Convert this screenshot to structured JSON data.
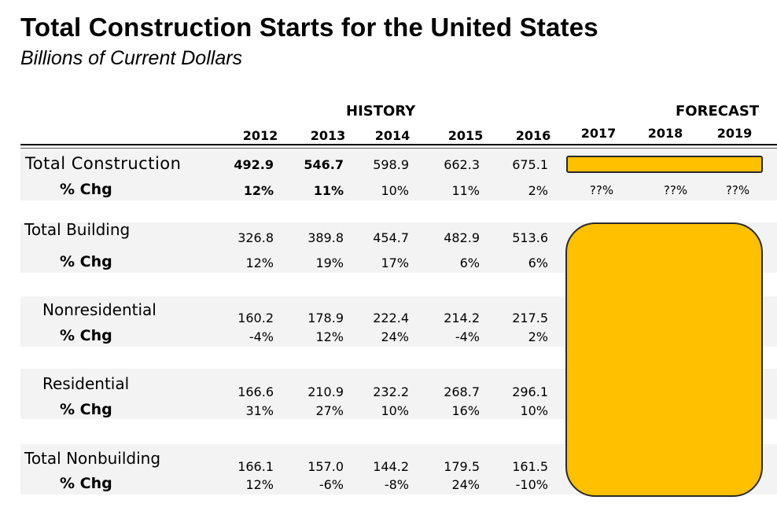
{
  "header": {
    "title": "Total Construction Starts for the United States",
    "subtitle": "Billions of Current Dollars"
  },
  "chart_data": {
    "type": "table",
    "title": "Total Construction Starts for the United States",
    "subtitle": "Billions of Current Dollars",
    "groups": {
      "history": "HISTORY",
      "forecast": "FORECAST"
    },
    "years": [
      "2012",
      "2013",
      "2014",
      "2015",
      "2016",
      "2017",
      "2018",
      "2019"
    ],
    "chg_label": "% Chg",
    "rows": [
      {
        "label": "Total Construction",
        "values": [
          "492.9",
          "546.7",
          "598.9",
          "662.3",
          "675.1"
        ],
        "chg": [
          "12%",
          "11%",
          "10%",
          "11%",
          "2%"
        ],
        "forecast_chg": [
          "??%",
          "??%",
          "??%"
        ]
      },
      {
        "label": "Total Building",
        "values": [
          "326.8",
          "389.8",
          "454.7",
          "482.9",
          "513.6"
        ],
        "chg": [
          "12%",
          "19%",
          "17%",
          "6%",
          "6%"
        ]
      },
      {
        "label": "Nonresidential",
        "values": [
          "160.2",
          "178.9",
          "222.4",
          "214.2",
          "217.5"
        ],
        "chg": [
          "-4%",
          "12%",
          "24%",
          "-4%",
          "2%"
        ]
      },
      {
        "label": "Residential",
        "values": [
          "166.6",
          "210.9",
          "232.2",
          "268.7",
          "296.1"
        ],
        "chg": [
          "31%",
          "27%",
          "10%",
          "16%",
          "10%"
        ]
      },
      {
        "label": "Total Nonbuilding",
        "values": [
          "166.1",
          "157.0",
          "144.2",
          "179.5",
          "161.5"
        ],
        "chg": [
          "12%",
          "-6%",
          "-8%",
          "24%",
          "-10%"
        ]
      }
    ],
    "highlight_color": "#ffc000"
  }
}
